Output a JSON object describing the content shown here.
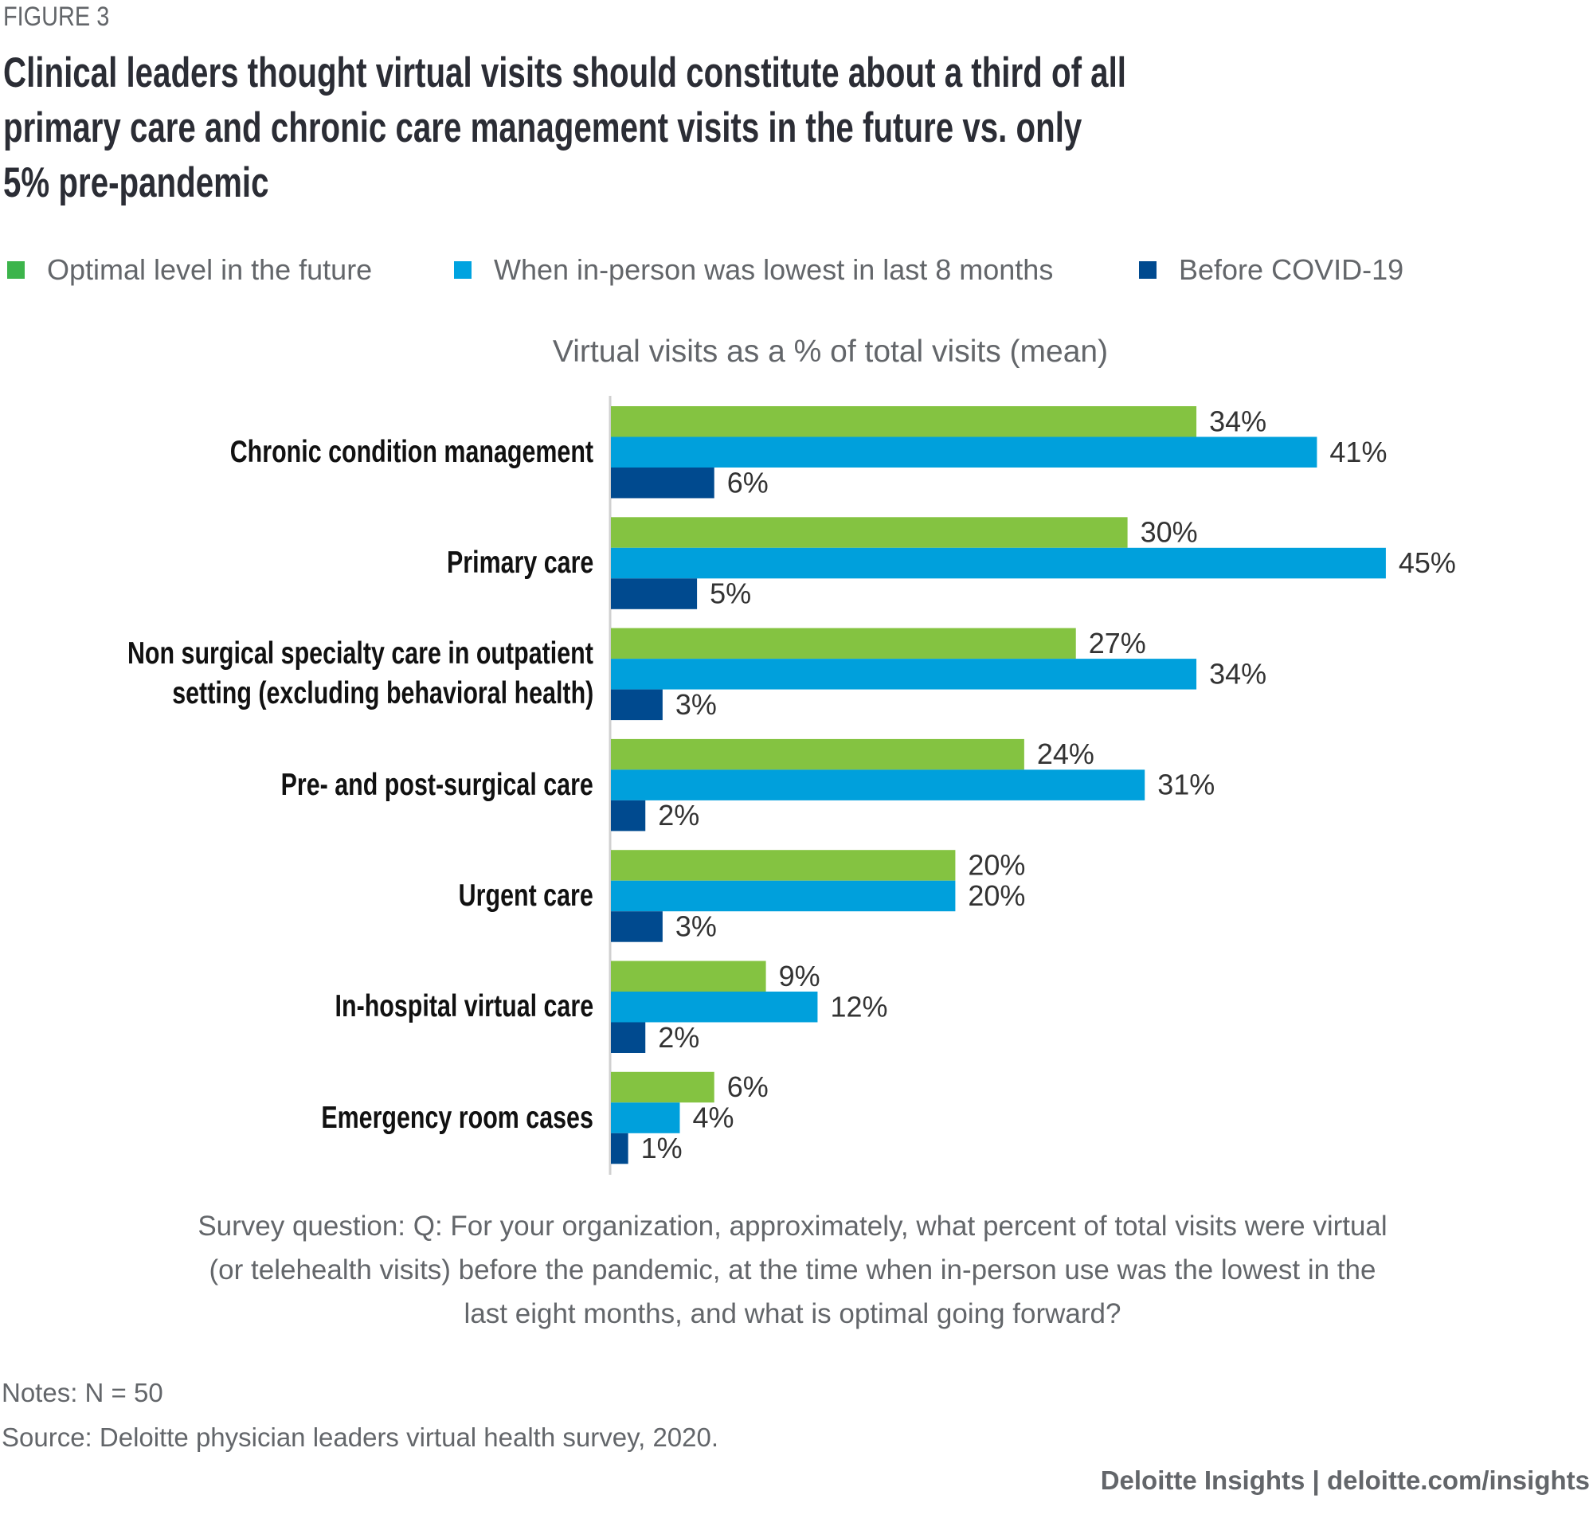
{
  "figure_label": "FIGURE 3",
  "title_lines": [
    "Clinical leaders thought virtual visits should constitute about a third of all",
    "primary care and chronic care management visits in the future vs. only",
    "5% pre-pandemic"
  ],
  "chart_data": {
    "type": "bar",
    "orientation": "horizontal",
    "title": "Virtual visits as a % of total visits (mean)",
    "categories": [
      [
        "Chronic condition management"
      ],
      [
        "Primary care"
      ],
      [
        "Non surgical specialty care in outpatient",
        "setting (excluding behavioral health)"
      ],
      [
        "Pre- and post-surgical care"
      ],
      [
        "Urgent care"
      ],
      [
        "In-hospital virtual care"
      ],
      [
        "Emergency room cases"
      ]
    ],
    "series": [
      {
        "name": "Optimal level in the future",
        "color": "#84c341",
        "legend_color": "#3cb44b",
        "values": [
          34,
          30,
          27,
          24,
          20,
          9,
          6
        ]
      },
      {
        "name": "When in-person was lowest in last 8 months",
        "color": "#00a0dc",
        "legend_color": "#00a3e0",
        "values": [
          41,
          45,
          34,
          31,
          20,
          12,
          4
        ]
      },
      {
        "name": "Before COVID-19",
        "color": "#004a8f",
        "legend_color": "#004a8f",
        "values": [
          6,
          5,
          3,
          2,
          3,
          2,
          1
        ]
      }
    ],
    "value_suffix": "%",
    "legend_position": "top-left",
    "grid": false
  },
  "survey_question": [
    "Survey question: Q: For your organization, approximately, what percent of total visits were virtual",
    "(or telehealth visits) before the pandemic, at the time when in-person use was the lowest in the",
    "last eight months, and what is optimal going forward?"
  ],
  "notes": "Notes: N = 50",
  "source": "Source: Deloitte physician leaders virtual health survey, 2020.",
  "footer": "Deloitte Insights | deloitte.com/insights"
}
